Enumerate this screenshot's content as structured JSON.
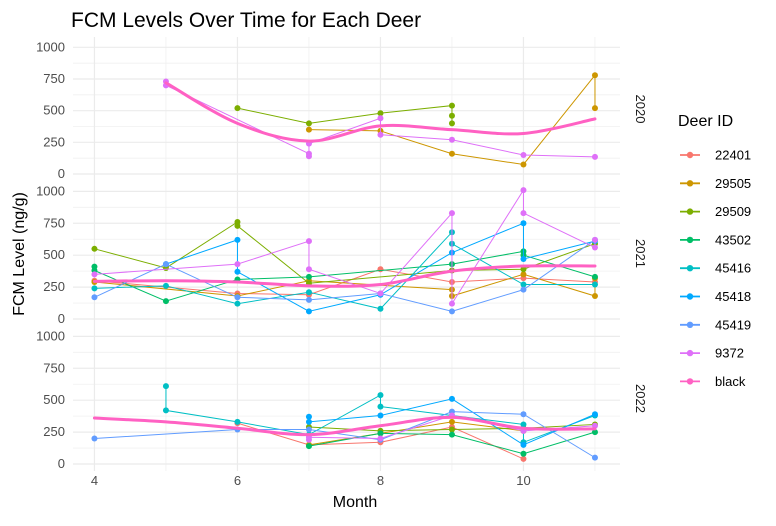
{
  "chart_data": {
    "type": "line",
    "title": "FCM Levels Over Time for Each Deer",
    "xlabel": "Month",
    "ylabel": "FCM Level (ng/g)",
    "xlim": [
      3.7,
      11.35
    ],
    "x_ticks": [
      4,
      6,
      8,
      10
    ],
    "ylim": [
      0,
      1050
    ],
    "y_ticks": [
      0,
      250,
      500,
      750,
      1000
    ],
    "grid": true,
    "facet_labels": [
      "2020",
      "2021",
      "2022"
    ],
    "legend": {
      "title": "Deer ID",
      "position": "right",
      "entries": [
        {
          "name": "22401",
          "color": "#F8766D"
        },
        {
          "name": "29505",
          "color": "#CD9600"
        },
        {
          "name": "29509",
          "color": "#7CAE00"
        },
        {
          "name": "43502",
          "color": "#00BE67"
        },
        {
          "name": "45416",
          "color": "#00BFC4"
        },
        {
          "name": "45418",
          "color": "#00A9FF"
        },
        {
          "name": "45419",
          "color": "#619CFF"
        },
        {
          "name": "9372",
          "color": "#DF70F8"
        },
        {
          "name": "black",
          "color": "#FF61C3"
        }
      ]
    },
    "facets": [
      {
        "label": "2020",
        "series": [
          {
            "name": "29505",
            "points": [
              [
                7,
                350
              ],
              [
                8,
                340
              ],
              [
                9,
                160
              ],
              [
                10,
                75
              ],
              [
                11,
                780
              ],
              [
                11,
                520
              ]
            ]
          },
          {
            "name": "29509",
            "points": [
              [
                6,
                520
              ],
              [
                7,
                400
              ],
              [
                8,
                480
              ],
              [
                9,
                540
              ],
              [
                9,
                460
              ],
              [
                9,
                400
              ]
            ]
          },
          {
            "name": "9372",
            "points": [
              [
                5,
                730
              ],
              [
                5,
                700
              ],
              [
                7,
                160
              ],
              [
                7,
                140
              ],
              [
                7,
                240
              ],
              [
                8,
                440
              ],
              [
                8,
                310
              ],
              [
                9,
                270
              ],
              [
                10,
                150
              ],
              [
                11,
                135
              ]
            ]
          },
          {
            "name": "black",
            "smooth": true,
            "points": [
              [
                5,
                720
              ],
              [
                6,
                400
              ],
              [
                7,
                260
              ],
              [
                8,
                380
              ],
              [
                9,
                350
              ],
              [
                10,
                320
              ],
              [
                11,
                435
              ]
            ]
          }
        ]
      },
      {
        "label": "2021",
        "series": [
          {
            "name": "22401",
            "points": [
              [
                4,
                300
              ],
              [
                6,
                200
              ],
              [
                7,
                190
              ],
              [
                8,
                390
              ],
              [
                9,
                290
              ],
              [
                10,
                320
              ],
              [
                11,
                290
              ]
            ]
          },
          {
            "name": "29505",
            "points": [
              [
                4,
                290
              ],
              [
                6,
                180
              ],
              [
                7,
                300
              ],
              [
                9,
                230
              ],
              [
                9,
                180
              ],
              [
                10,
                350
              ],
              [
                11,
                180
              ],
              [
                11,
                320
              ]
            ]
          },
          {
            "name": "29509",
            "points": [
              [
                4,
                550
              ],
              [
                5,
                400
              ],
              [
                6,
                760
              ],
              [
                6,
                730
              ],
              [
                7,
                280
              ],
              [
                9,
                380
              ],
              [
                10,
                390
              ],
              [
                11,
                590
              ]
            ]
          },
          {
            "name": "43502",
            "points": [
              [
                4,
                410
              ],
              [
                4,
                380
              ],
              [
                5,
                140
              ],
              [
                6,
                310
              ],
              [
                7,
                330
              ],
              [
                9,
                430
              ],
              [
                10,
                530
              ],
              [
                10,
                500
              ],
              [
                11,
                330
              ]
            ]
          },
          {
            "name": "45416",
            "points": [
              [
                4,
                240
              ],
              [
                5,
                260
              ],
              [
                6,
                120
              ],
              [
                7,
                210
              ],
              [
                8,
                80
              ],
              [
                9,
                680
              ],
              [
                9,
                590
              ],
              [
                10,
                270
              ],
              [
                11,
                270
              ]
            ]
          },
          {
            "name": "45418",
            "points": [
              [
                5,
                430
              ],
              [
                6,
                620
              ],
              [
                6,
                370
              ],
              [
                7,
                60
              ],
              [
                8,
                190
              ],
              [
                9,
                520
              ],
              [
                10,
                750
              ],
              [
                10,
                470
              ],
              [
                11,
                610
              ]
            ]
          },
          {
            "name": "45419",
            "points": [
              [
                4,
                170
              ],
              [
                5,
                430
              ],
              [
                6,
                170
              ],
              [
                7,
                150
              ],
              [
                8,
                200
              ],
              [
                9,
                60
              ],
              [
                10,
                230
              ],
              [
                11,
                620
              ]
            ]
          },
          {
            "name": "9372",
            "points": [
              [
                4,
                350
              ],
              [
                6,
                430
              ],
              [
                7,
                610
              ],
              [
                7,
                390
              ],
              [
                8,
                200
              ],
              [
                9,
                830
              ],
              [
                9,
                120
              ],
              [
                10,
                1010
              ],
              [
                10,
                830
              ],
              [
                11,
                560
              ],
              [
                11,
                620
              ]
            ]
          },
          {
            "name": "black",
            "smooth": true,
            "points": [
              [
                4,
                295
              ],
              [
                5,
                300
              ],
              [
                6,
                290
              ],
              [
                7,
                260
              ],
              [
                8,
                270
              ],
              [
                9,
                375
              ],
              [
                10,
                415
              ],
              [
                11,
                415
              ]
            ]
          }
        ]
      },
      {
        "label": "2022",
        "series": [
          {
            "name": "22401",
            "points": [
              [
                6,
                320
              ],
              [
                7,
                150
              ],
              [
                8,
                170
              ],
              [
                9,
                290
              ],
              [
                10,
                40
              ]
            ]
          },
          {
            "name": "29505",
            "points": [
              [
                7,
                150
              ],
              [
                8,
                240
              ],
              [
                9,
                330
              ],
              [
                10,
                260
              ]
            ]
          },
          {
            "name": "29509",
            "points": [
              [
                7,
                290
              ],
              [
                8,
                260
              ],
              [
                9,
                270
              ],
              [
                10,
                280
              ],
              [
                11,
                310
              ]
            ]
          },
          {
            "name": "43502",
            "points": [
              [
                7,
                140
              ],
              [
                8,
                240
              ],
              [
                9,
                230
              ],
              [
                10,
                80
              ],
              [
                11,
                250
              ]
            ]
          },
          {
            "name": "45416",
            "points": [
              [
                5,
                610
              ],
              [
                5,
                420
              ],
              [
                6,
                330
              ],
              [
                7,
                230
              ],
              [
                8,
                540
              ],
              [
                8,
                450
              ],
              [
                9,
                380
              ],
              [
                10,
                310
              ],
              [
                10,
                170
              ],
              [
                11,
                380
              ]
            ]
          },
          {
            "name": "45418",
            "points": [
              [
                7,
                370
              ],
              [
                7,
                330
              ],
              [
                8,
                380
              ],
              [
                9,
                510
              ],
              [
                10,
                150
              ],
              [
                11,
                390
              ]
            ]
          },
          {
            "name": "45419",
            "points": [
              [
                4,
                200
              ],
              [
                6,
                270
              ],
              [
                7,
                270
              ],
              [
                8,
                190
              ],
              [
                9,
                410
              ],
              [
                10,
                390
              ],
              [
                11,
                50
              ]
            ]
          },
          {
            "name": "9372",
            "points": [
              [
                7,
                190
              ],
              [
                7,
                210
              ],
              [
                8,
                200
              ],
              [
                9,
                380
              ],
              [
                10,
                260
              ],
              [
                11,
                300
              ]
            ]
          },
          {
            "name": "black",
            "smooth": true,
            "points": [
              [
                4,
                360
              ],
              [
                5,
                330
              ],
              [
                6,
                280
              ],
              [
                7,
                230
              ],
              [
                8,
                300
              ],
              [
                9,
                365
              ],
              [
                10,
                280
              ],
              [
                11,
                275
              ]
            ]
          }
        ]
      }
    ]
  }
}
